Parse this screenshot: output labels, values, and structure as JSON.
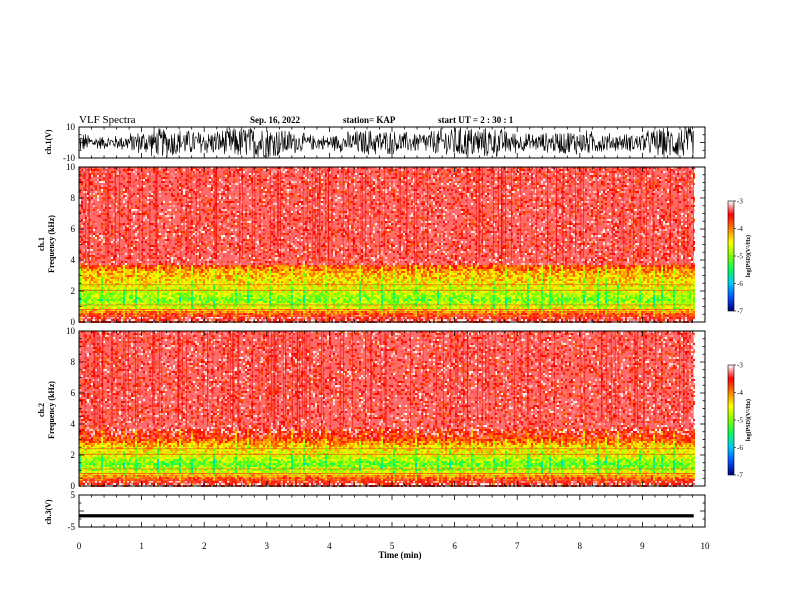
{
  "header": {
    "title": "VLF Spectra",
    "date": "Sep. 16, 2022",
    "station": "station= KAP",
    "start": "start  UT =   2  : 30 : 1"
  },
  "chart_data": [
    {
      "type": "line",
      "panel": "ch1-waveform",
      "ylabel": "ch.1(V)",
      "ylim": [
        -10,
        10
      ],
      "yticks": [
        -10,
        10
      ],
      "xlim": [
        0,
        10
      ],
      "samples": "dense noise, roughly -10 to 10 V, over 0-9.8 min",
      "color": "#000000"
    },
    {
      "type": "heatmap",
      "panel": "ch1-spectrogram",
      "ylabel": "ch.1 Frequency (kHz)",
      "ylim": [
        0,
        10
      ],
      "yticks": [
        0,
        2,
        4,
        6,
        8,
        10
      ],
      "xlim": [
        0,
        10
      ],
      "data_end_min": 9.82,
      "band_profile": [
        {
          "f_khz": 0.25,
          "log_psd": -3.3
        },
        {
          "f_khz": 0.6,
          "log_psd": -3.9
        },
        {
          "f_khz": 1.0,
          "log_psd": -4.6
        },
        {
          "f_khz": 1.5,
          "log_psd": -5.0
        },
        {
          "f_khz": 2.0,
          "log_psd": -4.7
        },
        {
          "f_khz": 2.6,
          "log_psd": -4.4
        },
        {
          "f_khz": 3.2,
          "log_psd": -4.2
        },
        {
          "f_khz": 4.0,
          "log_psd": -3.5
        },
        {
          "f_khz": 7.0,
          "log_psd": -3.1
        },
        {
          "f_khz": 10.0,
          "log_psd": -3.0
        }
      ]
    },
    {
      "type": "heatmap",
      "panel": "ch2-spectrogram",
      "ylabel": "ch.2 Frequency (kHz)",
      "ylim": [
        0,
        10
      ],
      "yticks": [
        0,
        2,
        4,
        6,
        8,
        10
      ],
      "xlim": [
        0,
        10
      ],
      "data_end_min": 9.82,
      "band_profile": [
        {
          "f_khz": 0.25,
          "log_psd": -3.3
        },
        {
          "f_khz": 0.6,
          "log_psd": -4.0
        },
        {
          "f_khz": 1.0,
          "log_psd": -4.7
        },
        {
          "f_khz": 1.5,
          "log_psd": -5.1
        },
        {
          "f_khz": 2.0,
          "log_psd": -4.6
        },
        {
          "f_khz": 2.6,
          "log_psd": -4.3
        },
        {
          "f_khz": 3.2,
          "log_psd": -3.6
        },
        {
          "f_khz": 4.0,
          "log_psd": -3.3
        },
        {
          "f_khz": 7.0,
          "log_psd": -3.1
        },
        {
          "f_khz": 10.0,
          "log_psd": -3.0
        }
      ]
    },
    {
      "type": "line",
      "panel": "ch3-waveform",
      "ylabel": "ch.3(V)",
      "ylim": [
        -5,
        5
      ],
      "yticks": [
        -5,
        5
      ],
      "xlim": [
        0,
        10
      ],
      "level_v": -1.5,
      "spread_v": 0.5,
      "color": "#000000"
    }
  ],
  "xaxis": {
    "label": "Time  (min)",
    "ticks": [
      0,
      1,
      2,
      3,
      4,
      5,
      6,
      7,
      8,
      9,
      10
    ]
  },
  "colorbar": {
    "label": "log(PSD)(V²/Hz)",
    "range": [
      -7,
      -3
    ],
    "ticks": [
      -3,
      -4,
      -5,
      -6,
      -7
    ],
    "colors": [
      "#000080",
      "#0050ff",
      "#00c8ff",
      "#00ff60",
      "#80ff00",
      "#ffff00",
      "#ff8000",
      "#ff0000",
      "#ffffff"
    ]
  }
}
